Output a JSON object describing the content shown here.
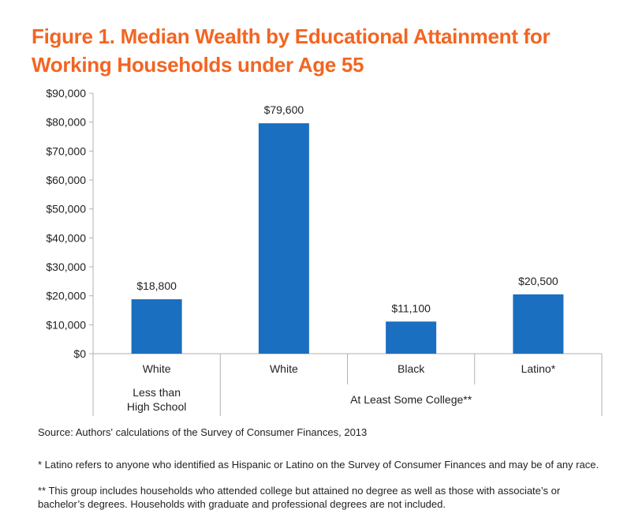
{
  "title_lines": [
    "Figure 1. Median Wealth by Educational Attainment for",
    "Working Households under Age 55"
  ],
  "chart_data": {
    "type": "bar",
    "categories": [
      "White",
      "White",
      "Black",
      "Latino*"
    ],
    "groups": [
      {
        "label_lines": [
          "Less than",
          "High School"
        ],
        "span": 1
      },
      {
        "label_lines": [
          "At Least Some College**"
        ],
        "span": 3
      }
    ],
    "values": [
      18800,
      79600,
      11100,
      20500
    ],
    "data_labels": [
      "$18,800",
      "$79,600",
      "$11,100",
      "$20,500"
    ],
    "ylim": [
      0,
      90000
    ],
    "yticks": [
      0,
      10000,
      20000,
      30000,
      40000,
      50000,
      60000,
      70000,
      80000,
      90000
    ],
    "ytick_labels": [
      "$0",
      "$10,000",
      "$20,000",
      "$30,000",
      "$40,000",
      "$50,000",
      "$60,000",
      "$70,000",
      "$80,000",
      "$90,000"
    ],
    "bar_color": "#1a6fc0",
    "grid": false
  },
  "source": "Source: Authors' calculations of the Survey of Consumer Finances, 2013",
  "notes": [
    "* Latino refers to anyone who identified as Hispanic or Latino on the Survey of Consumer Finances and may be of any race.",
    "** This group includes households who attended college but attained no degree as well as those with associate’s or bachelor’s degrees. Households with graduate and professional degrees are not included."
  ]
}
